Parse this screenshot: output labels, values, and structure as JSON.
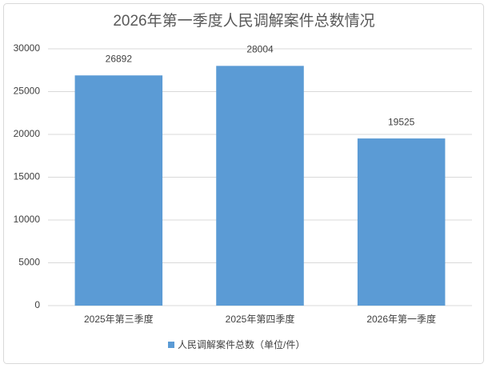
{
  "chart_data": {
    "type": "bar",
    "title": "2026年第一季度人民调解案件总数情况",
    "categories": [
      "2025年第三季度",
      "2025年第四季度",
      "2026年第一季度"
    ],
    "series": [
      {
        "name": "人民调解案件总数（单位/件）",
        "color": "#5b9bd5",
        "values": [
          26892,
          28004,
          19525
        ]
      }
    ],
    "ylim": [
      0,
      30000
    ],
    "yticks": [
      0,
      5000,
      10000,
      15000,
      20000,
      25000,
      30000
    ],
    "grid": true,
    "legend": "bottom"
  }
}
